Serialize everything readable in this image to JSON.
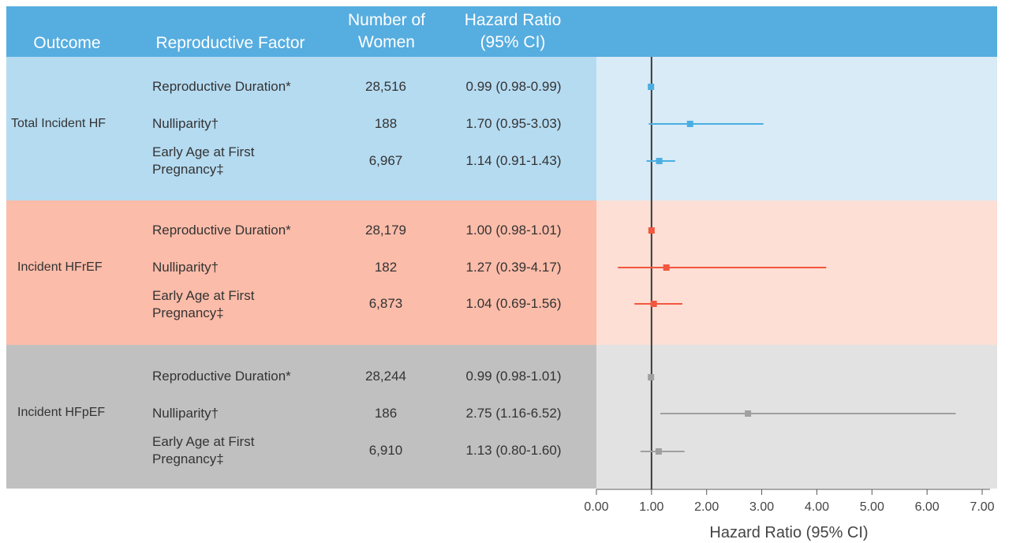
{
  "header": {
    "outcome": "Outcome",
    "factor": "Reproductive Factor",
    "number_line1": "Number of",
    "number_line2": "Women",
    "hr_line1": "Hazard Ratio",
    "hr_line2": "(95% CI)"
  },
  "colors": {
    "header": "#56ade0",
    "total_left": "#b5dbf1",
    "total_right": "#d8ebf7",
    "hfref_left": "#fbbca9",
    "hfref_right": "#fddfd5",
    "hfpef_left": "#c0c0c0",
    "hfpef_right": "#e2e2e2",
    "total_mark": "#4aaee2",
    "hfref_mark": "#f2573f",
    "hfpef_mark": "#a0a0a0"
  },
  "groups": [
    {
      "outcome": "Total Incident HF",
      "rows": [
        {
          "factor_line1": "Reproductive Duration*",
          "factor_line2": "",
          "n": "28,516",
          "hr_text": "0.99 (0.98-0.99)"
        },
        {
          "factor_line1": "Nulliparity†",
          "factor_line2": "",
          "n": "188",
          "hr_text": "1.70 (0.95-3.03)"
        },
        {
          "factor_line1": "Early Age at First",
          "factor_line2": "Pregnancy‡",
          "n": "6,967",
          "hr_text": "1.14 (0.91-1.43)"
        }
      ]
    },
    {
      "outcome": "Incident HFrEF",
      "rows": [
        {
          "factor_line1": "Reproductive Duration*",
          "factor_line2": "",
          "n": "28,179",
          "hr_text": "1.00 (0.98-1.01)"
        },
        {
          "factor_line1": "Nulliparity†",
          "factor_line2": "",
          "n": "182",
          "hr_text": "1.27 (0.39-4.17)"
        },
        {
          "factor_line1": "Early Age at First",
          "factor_line2": "Pregnancy‡",
          "n": "6,873",
          "hr_text": "1.04 (0.69-1.56)"
        }
      ]
    },
    {
      "outcome": "Incident HFpEF",
      "rows": [
        {
          "factor_line1": "Reproductive Duration*",
          "factor_line2": "",
          "n": "28,244",
          "hr_text": "0.99 (0.98-1.01)"
        },
        {
          "factor_line1": "Nulliparity†",
          "factor_line2": "",
          "n": "186",
          "hr_text": "2.75 (1.16-6.52)"
        },
        {
          "factor_line1": "Early Age at First",
          "factor_line2": "Pregnancy‡",
          "n": "6,910",
          "hr_text": "1.13 (0.80-1.60)"
        }
      ]
    }
  ],
  "chart_data": {
    "type": "forest",
    "xlabel": "Hazard Ratio (95% CI)",
    "xlim": [
      0,
      7
    ],
    "xticks": [
      "0.00",
      "1.00",
      "2.00",
      "3.00",
      "4.00",
      "5.00",
      "6.00",
      "7.00"
    ],
    "reference_line": 1.0,
    "series": [
      {
        "name": "Total Incident HF",
        "points": [
          {
            "label": "Reproductive Duration*",
            "hr": 0.99,
            "lo": 0.98,
            "hi": 0.99
          },
          {
            "label": "Nulliparity†",
            "hr": 1.7,
            "lo": 0.95,
            "hi": 3.03
          },
          {
            "label": "Early Age at First Pregnancy‡",
            "hr": 1.14,
            "lo": 0.91,
            "hi": 1.43
          }
        ]
      },
      {
        "name": "Incident HFrEF",
        "points": [
          {
            "label": "Reproductive Duration*",
            "hr": 1.0,
            "lo": 0.98,
            "hi": 1.01
          },
          {
            "label": "Nulliparity†",
            "hr": 1.27,
            "lo": 0.39,
            "hi": 4.17
          },
          {
            "label": "Early Age at First Pregnancy‡",
            "hr": 1.04,
            "lo": 0.69,
            "hi": 1.56
          }
        ]
      },
      {
        "name": "Incident HFpEF",
        "points": [
          {
            "label": "Reproductive Duration*",
            "hr": 0.99,
            "lo": 0.98,
            "hi": 1.01
          },
          {
            "label": "Nulliparity†",
            "hr": 2.75,
            "lo": 1.16,
            "hi": 6.52
          },
          {
            "label": "Early Age at First Pregnancy‡",
            "hr": 1.13,
            "lo": 0.8,
            "hi": 1.6
          }
        ]
      }
    ]
  }
}
